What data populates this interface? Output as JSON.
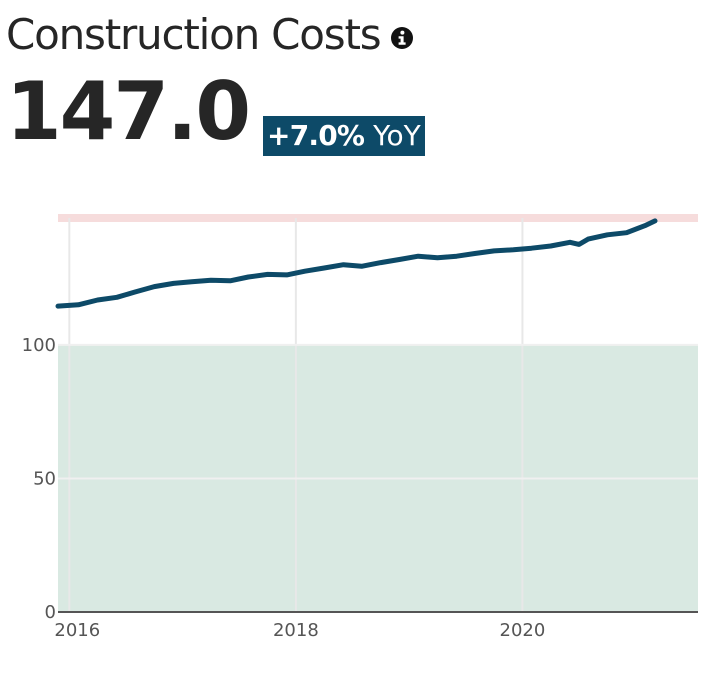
{
  "header": {
    "title": "Construction Costs",
    "info_icon": "info-circle-icon"
  },
  "kpi": {
    "value": "147.0",
    "change": "+7.0%",
    "change_suffix": "YoY",
    "badge_color": "#0d4a68"
  },
  "colors": {
    "line": "#0d4a68",
    "band_upper": "#f6dcdc",
    "band_lower": "#d9e9e2",
    "grid": "#e8e8e8",
    "axis": "#555555"
  },
  "chart_data": {
    "type": "line",
    "title": "",
    "xlabel": "",
    "ylabel": "",
    "xlim": [
      2015.9,
      2021.55
    ],
    "ylim": [
      0,
      147.5
    ],
    "x_ticks": [
      2016,
      2018,
      2020
    ],
    "x_tick_labels": [
      "2016",
      "2018",
      "2020"
    ],
    "y_ticks": [
      0,
      50,
      100
    ],
    "y_tick_labels": [
      "0",
      "50",
      "100"
    ],
    "grid": true,
    "bands": [
      {
        "from": 0,
        "to": 100,
        "color": "#d9e9e2"
      },
      {
        "from": 146,
        "to": 149,
        "color": "#f6dcdc"
      }
    ],
    "series": [
      {
        "color": "#0d4a68",
        "x": [
          2015.9,
          2016.08,
          2016.25,
          2016.42,
          2016.58,
          2016.75,
          2016.92,
          2017.08,
          2017.25,
          2017.42,
          2017.58,
          2017.75,
          2017.92,
          2018.08,
          2018.25,
          2018.42,
          2018.58,
          2018.75,
          2018.92,
          2019.08,
          2019.25,
          2019.42,
          2019.58,
          2019.75,
          2019.92,
          2020.08,
          2020.25,
          2020.42,
          2020.5,
          2020.58,
          2020.75,
          2020.92,
          2021.08,
          2021.17
        ],
        "y": [
          114.5,
          115.0,
          116.8,
          117.8,
          119.8,
          121.8,
          123.0,
          123.6,
          124.2,
          124.0,
          125.4,
          126.4,
          126.2,
          127.6,
          128.8,
          130.0,
          129.4,
          130.8,
          132.0,
          133.2,
          132.6,
          133.2,
          134.2,
          135.2,
          135.6,
          136.2,
          137.0,
          138.4,
          137.6,
          139.6,
          141.2,
          142.0,
          144.6,
          146.4
        ]
      }
    ]
  }
}
